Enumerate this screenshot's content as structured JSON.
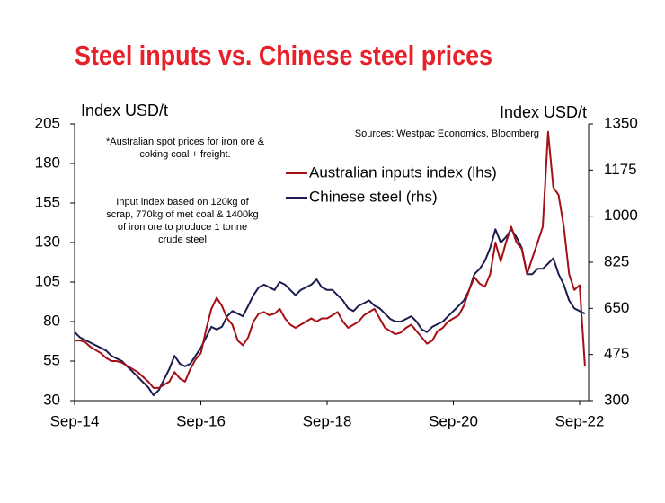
{
  "chart_data": {
    "type": "line",
    "title": "Steel inputs vs. Chinese steel prices",
    "y_label": "Index USD/t",
    "y2_label": "Index USD/t",
    "source": "Sources: Westpac Economics, Bloomberg",
    "annotations": [
      [
        "*Australian spot prices for iron ore &",
        "coking coal + freight."
      ],
      [
        "Input index based on 120kg of",
        "scrap, 770kg of met coal & 1400kg",
        "of iron ore to produce 1 tonne",
        "crude steel"
      ]
    ],
    "categories": [
      "Sep-14",
      null,
      null,
      null,
      null,
      null,
      null,
      null,
      null,
      null,
      null,
      null,
      null,
      null,
      null,
      null,
      null,
      null,
      null,
      null,
      null,
      null,
      null,
      null,
      "Sep-16",
      null,
      null,
      null,
      null,
      null,
      null,
      null,
      null,
      null,
      null,
      null,
      null,
      null,
      null,
      null,
      null,
      null,
      null,
      null,
      null,
      null,
      null,
      null,
      "Sep-18",
      null,
      null,
      null,
      null,
      null,
      null,
      null,
      null,
      null,
      null,
      null,
      null,
      null,
      null,
      null,
      null,
      null,
      null,
      null,
      null,
      null,
      null,
      null,
      "Sep-20",
      null,
      null,
      null,
      null,
      null,
      null,
      null,
      null,
      null,
      null,
      null,
      null,
      null,
      null,
      null,
      null,
      null,
      null,
      null,
      null,
      null,
      null,
      null,
      "Sep-22",
      null
    ],
    "ylim": [
      30,
      205
    ],
    "yticks": [
      30,
      55,
      80,
      105,
      130,
      155,
      180,
      205
    ],
    "y2lim": [
      300,
      1350
    ],
    "y2ticks": [
      300,
      475,
      650,
      825,
      1000,
      1175,
      1350
    ],
    "legend": "top-center",
    "series": [
      {
        "name": "Australian inputs index (lhs)",
        "color": "#a50f15",
        "values": [
          68,
          68,
          67,
          64,
          62,
          60,
          57,
          55,
          55,
          54,
          52,
          50,
          48,
          45,
          42,
          38,
          38,
          40,
          42,
          48,
          44,
          42,
          50,
          56,
          60,
          75,
          88,
          95,
          90,
          82,
          78,
          68,
          65,
          70,
          80,
          85,
          86,
          84,
          85,
          88,
          82,
          78,
          76,
          78,
          80,
          82,
          80,
          82,
          82,
          84,
          86,
          80,
          76,
          78,
          80,
          84,
          86,
          88,
          82,
          76,
          74,
          72,
          73,
          76,
          78,
          74,
          70,
          66,
          68,
          74,
          76,
          80,
          82,
          84,
          90,
          100,
          108,
          104,
          102,
          110,
          130,
          118,
          130,
          140,
          130,
          126,
          110,
          120,
          130,
          140,
          200,
          165,
          160,
          140,
          110,
          100,
          103,
          52
        ]
      },
      {
        "name": "Chinese steel  (rhs)",
        "color": "#1c1c50",
        "axis": "y2",
        "values": [
          560,
          540,
          530,
          520,
          510,
          500,
          490,
          470,
          460,
          450,
          430,
          410,
          390,
          370,
          350,
          320,
          340,
          380,
          420,
          470,
          440,
          430,
          440,
          470,
          500,
          540,
          580,
          570,
          580,
          620,
          640,
          630,
          620,
          660,
          700,
          730,
          740,
          730,
          720,
          750,
          740,
          720,
          700,
          720,
          730,
          740,
          760,
          730,
          720,
          720,
          700,
          680,
          650,
          640,
          660,
          670,
          680,
          660,
          650,
          630,
          610,
          600,
          600,
          610,
          620,
          600,
          570,
          560,
          580,
          590,
          600,
          620,
          640,
          660,
          680,
          720,
          780,
          800,
          830,
          880,
          950,
          900,
          920,
          950,
          920,
          880,
          780,
          780,
          800,
          800,
          820,
          840,
          780,
          740,
          680,
          650,
          640,
          630
        ]
      }
    ]
  }
}
